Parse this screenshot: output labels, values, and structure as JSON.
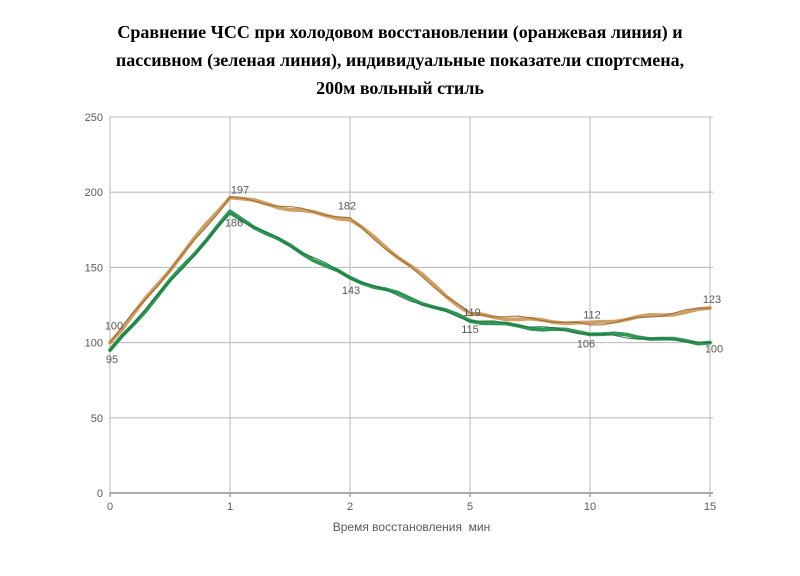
{
  "title": {
    "lines": [
      "Сравнение ЧСС при холодовом восстановлении (оранжевая линия) и",
      "пассивном (зеленая линия), индивидуальные показатели спортсмена,",
      "200м вольный стиль"
    ]
  },
  "chart_data": {
    "type": "line",
    "categories": [
      "0",
      "1",
      "2",
      "5",
      "10",
      "15"
    ],
    "series": [
      {
        "name": "холодовое восстановление (оранжевая линия)",
        "values": [
          100,
          197,
          182,
          119,
          112,
          123
        ],
        "color": "#CFA066",
        "edge_color": "#96642A"
      },
      {
        "name": "пассивное восстановление (зеленая линия)",
        "values": [
          95,
          186,
          143,
          115,
          106,
          100
        ],
        "color": "#2F9656",
        "edge_color": "#1B6E3E"
      }
    ],
    "xlabel": "Время восстановления  мин",
    "ylabel": "",
    "ylim": [
      0,
      250
    ],
    "y_ticks": [
      0,
      50,
      100,
      150,
      200,
      250
    ],
    "grid": true,
    "legend": "none",
    "data_labels": true,
    "label_color": "#595959",
    "grid_color": "#BDBDBD",
    "axis_color": "#8F8F8F",
    "background": "#FFFFFF"
  }
}
